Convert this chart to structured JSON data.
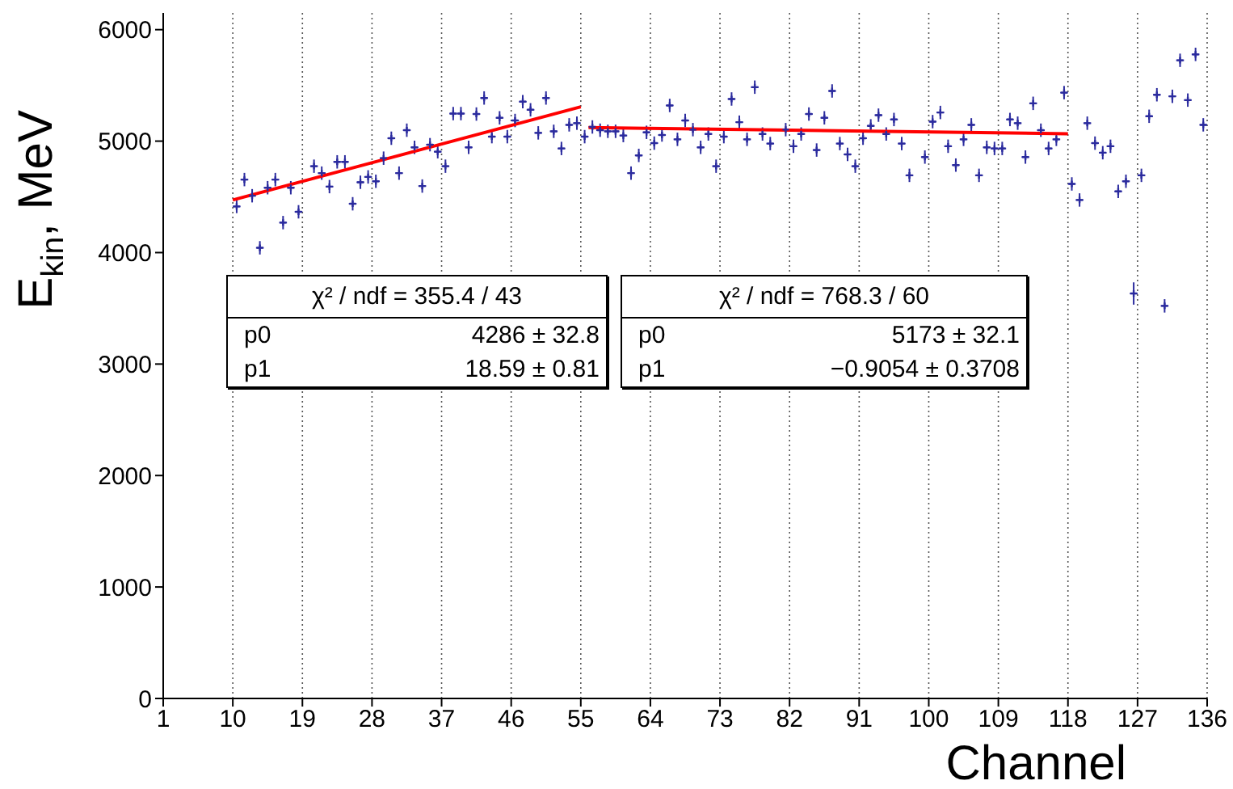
{
  "chart_data": {
    "type": "scatter",
    "xlabel": "Channel",
    "ylabel": "E$_{kin}$, MeV",
    "xlim": [
      1,
      136
    ],
    "xticks": [
      1,
      10,
      19,
      28,
      37,
      46,
      55,
      64,
      73,
      82,
      91,
      100,
      109,
      118,
      127,
      136
    ],
    "ylim": [
      0,
      6150
    ],
    "yticks": [
      0,
      1000,
      2000,
      3000,
      4000,
      5000,
      6000
    ],
    "grid": "x",
    "marker": "cross",
    "annotations": [
      "χ² / ndf = 355.4 / 43",
      "p0",
      "4286 ± 32.8",
      "p1",
      "18.59 ± 0.81",
      "χ² / ndf = 768.3 / 60",
      "p0",
      "5173 ± 32.1",
      "p1",
      "−0.9054 ± 0.3708"
    ],
    "series": [
      {
        "color": "#2b2b9e",
        "x": [
          10.5,
          11.5,
          12.5,
          13.5,
          14.5,
          15.5,
          16.5,
          17.5,
          18.5,
          20.5,
          21.5,
          22.5,
          23.5,
          24.5,
          25.5,
          26.5,
          27.5,
          28.5,
          29.5,
          30.5,
          31.5,
          32.5,
          33.5,
          34.5,
          35.5,
          36.5,
          37.5,
          38.5,
          39.5,
          40.5,
          41.5,
          42.5,
          43.5,
          44.5,
          45.5,
          46.5,
          47.5,
          48.5,
          49.5,
          50.5,
          51.5,
          52.5,
          53.5,
          54.5,
          55.5,
          56.5,
          57.5,
          58.5,
          59.5,
          60.5,
          61.5,
          62.5,
          63.5,
          64.5,
          65.5,
          66.5,
          67.5,
          68.5,
          69.5,
          70.5,
          71.5,
          72.5,
          73.5,
          74.5,
          75.5,
          76.5,
          77.5,
          78.5,
          79.5,
          81.5,
          82.5,
          83.5,
          84.5,
          85.5,
          86.5,
          87.5,
          88.5,
          89.5,
          90.5,
          91.5,
          92.5,
          93.5,
          94.5,
          95.5,
          96.5,
          97.5,
          99.5,
          100.5,
          101.5,
          102.5,
          103.5,
          104.5,
          105.5,
          106.5,
          107.5,
          108.5,
          109.5,
          110.5,
          111.5,
          112.5,
          113.5,
          114.5,
          115.5,
          116.5,
          117.5,
          118.5,
          119.5,
          120.5,
          121.5,
          122.5,
          123.5,
          124.5,
          125.5,
          126.5,
          127.5,
          128.5,
          129.5,
          130.5,
          131.5,
          132.5,
          133.5,
          134.5,
          135.5
        ],
        "values": [
          4414,
          4655,
          4510,
          4043,
          4582,
          4655,
          4269,
          4582,
          4366,
          4775,
          4713,
          4592,
          4814,
          4814,
          4438,
          4631,
          4679,
          4640,
          4847,
          5026,
          4713,
          5098,
          4944,
          4597,
          4968,
          4905,
          4775,
          5247,
          5247,
          4944,
          5243,
          5387,
          5040,
          5209,
          5040,
          5185,
          5354,
          5281,
          5074,
          5387,
          5088,
          4934,
          5146,
          5161,
          5040,
          5127,
          5098,
          5088,
          5088,
          5050,
          4713,
          4872,
          5079,
          4982,
          5055,
          5320,
          5016,
          5185,
          5103,
          4944,
          5064,
          4775,
          5040,
          5378,
          5170,
          5016,
          5484,
          5064,
          4978,
          5103,
          4954,
          5064,
          5243,
          4920,
          5209,
          5450,
          4978,
          4881,
          4775,
          5026,
          5137,
          5233,
          5064,
          5194,
          4978,
          4693,
          4857,
          5175,
          5257,
          4954,
          4785,
          5016,
          5146,
          4693,
          4944,
          4934,
          4934,
          5194,
          5161,
          4857,
          5339,
          5098,
          4934,
          5016,
          5435,
          4616,
          4472,
          5161,
          4982,
          4896,
          4954,
          4549,
          4640,
          3633,
          4693,
          5223,
          5416,
          3522,
          5402,
          5725,
          5368,
          5778,
          5146
        ],
        "errors": [
          60,
          60,
          60,
          60,
          60,
          60,
          60,
          60,
          60,
          60,
          60,
          60,
          60,
          60,
          60,
          60,
          60,
          60,
          60,
          60,
          60,
          60,
          60,
          60,
          60,
          60,
          60,
          60,
          60,
          60,
          60,
          60,
          60,
          60,
          60,
          60,
          60,
          60,
          60,
          60,
          60,
          60,
          60,
          60,
          60,
          60,
          60,
          60,
          60,
          60,
          60,
          60,
          60,
          60,
          60,
          60,
          60,
          60,
          60,
          60,
          60,
          60,
          60,
          60,
          60,
          60,
          60,
          60,
          60,
          60,
          60,
          60,
          60,
          60,
          60,
          60,
          60,
          60,
          60,
          60,
          60,
          60,
          60,
          60,
          60,
          60,
          60,
          60,
          60,
          60,
          60,
          60,
          60,
          60,
          60,
          60,
          60,
          60,
          60,
          60,
          60,
          60,
          60,
          60,
          60,
          60,
          60,
          60,
          60,
          60,
          60,
          60,
          60,
          100,
          60,
          60,
          60,
          60,
          60,
          60,
          60,
          60,
          60
        ],
        "xerrors": [
          0.5,
          0.5,
          0.5,
          0.5,
          0.5,
          0.5,
          0.5,
          0.5,
          0.5,
          0.5,
          0.5,
          0.5,
          0.5,
          0.5,
          0.5,
          0.5,
          0.5,
          0.5,
          0.5,
          0.5,
          0.5,
          0.5,
          0.5,
          0.5,
          0.5,
          0.5,
          0.5,
          0.5,
          0.5,
          0.5,
          0.5,
          0.5,
          0.5,
          0.5,
          0.5,
          0.5,
          0.5,
          0.5,
          0.5,
          0.5,
          0.5,
          0.5,
          0.5,
          0.5,
          0.5,
          0.5,
          0.5,
          0.5,
          0.5,
          0.5,
          0.5,
          0.5,
          0.5,
          0.5,
          0.5,
          0.5,
          0.5,
          0.5,
          0.5,
          0.5,
          0.5,
          0.5,
          0.5,
          0.5,
          0.5,
          0.5,
          0.5,
          0.5,
          0.5,
          0.5,
          0.5,
          0.5,
          0.5,
          0.5,
          0.5,
          0.5,
          0.5,
          0.5,
          0.5,
          0.5,
          0.5,
          0.5,
          0.5,
          0.5,
          0.5,
          0.5,
          0.5,
          0.5,
          0.5,
          0.5,
          0.5,
          0.5,
          0.5,
          0.5,
          0.5,
          0.5,
          0.5,
          0.5,
          0.5,
          0.5,
          0.5,
          0.5,
          0.5,
          0.5,
          0.5,
          0.5,
          0.5,
          0.5,
          0.5,
          0.5,
          0.5,
          0.5,
          0.5,
          0.5,
          0.5,
          0.5,
          0.5,
          0.5,
          0.5,
          0.5,
          0.5,
          0.5,
          0.5
        ]
      },
      {
        "type": "line",
        "marker": "none",
        "color": "#ff0000",
        "x": [
          10,
          55
        ],
        "values": [
          4472,
          5308
        ]
      },
      {
        "type": "line",
        "marker": "none",
        "color": "#ff0000",
        "x": [
          56,
          118
        ],
        "values": [
          5122,
          5066
        ]
      }
    ]
  }
}
